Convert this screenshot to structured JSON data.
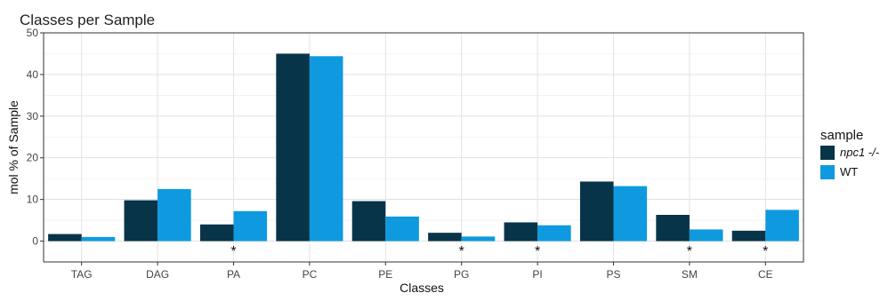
{
  "chart_data": {
    "type": "bar",
    "title": "Classes per Sample",
    "xlabel": "Classes",
    "ylabel": "mol % of Sample",
    "ylim": [
      -5,
      50
    ],
    "yticks": [
      0,
      10,
      20,
      30,
      40,
      50
    ],
    "grid": true,
    "categories": [
      "TAG",
      "DAG",
      "PA",
      "PC",
      "PE",
      "PG",
      "PI",
      "PS",
      "SM",
      "CE"
    ],
    "significance": [
      "",
      "",
      "*",
      "",
      "",
      "*",
      "*",
      "",
      "*",
      "*"
    ],
    "series": [
      {
        "name": "npc1 -/-",
        "color": "#08344a",
        "values": [
          1.7,
          9.8,
          4.0,
          45.0,
          9.6,
          2.0,
          4.5,
          14.3,
          6.3,
          2.5
        ]
      },
      {
        "name": "WT",
        "color": "#0f9ae0",
        "values": [
          1.0,
          12.5,
          7.2,
          44.4,
          5.9,
          1.1,
          3.8,
          13.2,
          2.8,
          7.5
        ]
      }
    ],
    "legend": {
      "title": "sample",
      "position": "right"
    }
  }
}
